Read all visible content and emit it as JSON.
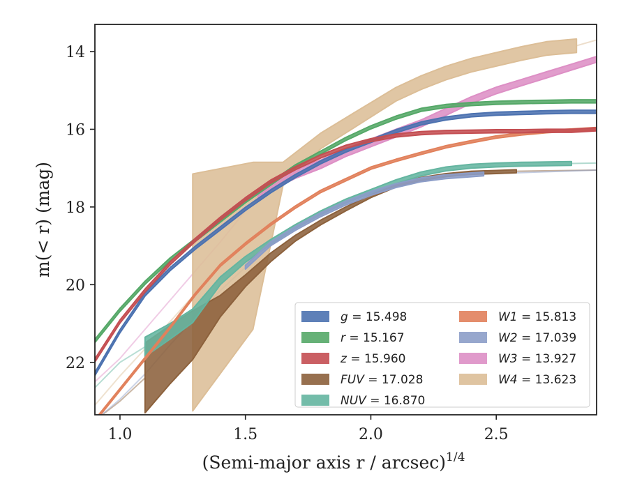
{
  "chart_data": {
    "type": "line",
    "xlabel": "(Semi-major axis r / arcsec)",
    "xlabel_exponent": "1/4",
    "ylabel": "m(< r) (mag)",
    "xlim": [
      0.9,
      2.9
    ],
    "ylim": [
      23.35,
      13.3
    ],
    "y_inverted": true,
    "xticks": [
      1.0,
      1.5,
      2.0,
      2.5
    ],
    "xtick_labels": [
      "1.0",
      "1.5",
      "2.0",
      "2.5"
    ],
    "yticks": [
      14,
      16,
      18,
      20,
      22
    ],
    "ytick_labels": [
      "14",
      "16",
      "18",
      "20",
      "22"
    ],
    "grid": false,
    "legend_position": "lower-right",
    "series": [
      {
        "name": "g = 15.498",
        "band": "g",
        "total_mag": "15.498",
        "color": "#4c72b0",
        "extrap_end": [
          2.9,
          15.52
        ],
        "x": [
          0.9,
          1.0,
          1.1,
          1.2,
          1.3,
          1.4,
          1.5,
          1.6,
          1.7,
          1.8,
          1.9,
          2.0,
          2.1,
          2.2,
          2.3,
          2.4,
          2.5,
          2.6,
          2.7,
          2.8,
          2.9
        ],
        "center": [
          22.3,
          21.2,
          20.25,
          19.6,
          19.05,
          18.55,
          18.05,
          17.6,
          17.2,
          16.85,
          16.55,
          16.3,
          16.05,
          15.85,
          15.72,
          15.64,
          15.6,
          15.58,
          15.56,
          15.55,
          15.55
        ],
        "width": 0.08
      },
      {
        "name": "r = 15.167",
        "band": "r",
        "total_mag": "15.167",
        "color": "#55a868",
        "extrap_end": [
          2.9,
          15.22
        ],
        "x": [
          0.9,
          1.0,
          1.1,
          1.2,
          1.3,
          1.4,
          1.5,
          1.6,
          1.7,
          1.8,
          1.9,
          2.0,
          2.1,
          2.2,
          2.3,
          2.4,
          2.5,
          2.6,
          2.7,
          2.8,
          2.9
        ],
        "center": [
          21.45,
          20.65,
          19.95,
          19.35,
          18.85,
          18.35,
          17.85,
          17.4,
          16.95,
          16.6,
          16.25,
          15.95,
          15.7,
          15.5,
          15.4,
          15.35,
          15.32,
          15.3,
          15.29,
          15.28,
          15.28
        ],
        "width": 0.08
      },
      {
        "name": "z = 15.960",
        "band": "z",
        "total_mag": "15.960",
        "color": "#c44e52",
        "extrap_end": [
          2.9,
          15.95
        ],
        "x": [
          0.9,
          1.0,
          1.1,
          1.2,
          1.3,
          1.4,
          1.5,
          1.6,
          1.7,
          1.8,
          1.9,
          2.0,
          2.1,
          2.2,
          2.3,
          2.4,
          2.5,
          2.6,
          2.7,
          2.8,
          2.9
        ],
        "center": [
          21.95,
          20.95,
          20.15,
          19.45,
          18.85,
          18.3,
          17.8,
          17.35,
          17.0,
          16.7,
          16.45,
          16.28,
          16.16,
          16.1,
          16.07,
          16.06,
          16.05,
          16.05,
          16.04,
          16.04,
          16.0
        ],
        "width": 0.08
      },
      {
        "name": "FUV = 17.028",
        "band": "FUV",
        "total_mag": "17.028",
        "color": "#8c613c",
        "extrap_end": [
          2.9,
          17.05
        ],
        "x": [
          1.1,
          1.2,
          1.29,
          1.4,
          1.5,
          1.6,
          1.7,
          1.8,
          1.9,
          2.0,
          2.1,
          2.2,
          2.3,
          2.4,
          2.5,
          2.58
        ],
        "center": [
          22.4,
          21.8,
          21.3,
          20.55,
          19.9,
          19.3,
          18.8,
          18.4,
          18.05,
          17.72,
          17.45,
          17.28,
          17.18,
          17.12,
          17.1,
          17.08
        ],
        "width": [
          1.8,
          1.5,
          1.25,
          0.55,
          0.3,
          0.22,
          0.15,
          0.12,
          0.1,
          0.08,
          0.08,
          0.08,
          0.08,
          0.08,
          0.08,
          0.08
        ],
        "x_pre": [
          0.9,
          1.0,
          1.1
        ],
        "pre": [
          23.5,
          23.0,
          22.4
        ]
      },
      {
        "name": "NUV = 16.870",
        "band": "NUV",
        "total_mag": "16.870",
        "color": "#64b5a0",
        "extrap_end": [
          2.9,
          16.87
        ],
        "x": [
          1.1,
          1.2,
          1.29,
          1.4,
          1.5,
          1.6,
          1.7,
          1.8,
          1.9,
          2.0,
          2.1,
          2.2,
          2.3,
          2.4,
          2.5,
          2.6,
          2.7,
          2.8
        ],
        "center": [
          21.6,
          21.2,
          20.8,
          19.9,
          19.35,
          18.9,
          18.5,
          18.15,
          17.85,
          17.6,
          17.35,
          17.15,
          17.02,
          16.95,
          16.92,
          16.9,
          16.89,
          16.88
        ],
        "width": [
          0.5,
          0.4,
          0.35,
          0.2,
          0.15,
          0.12,
          0.1,
          0.1,
          0.1,
          0.1,
          0.1,
          0.1,
          0.1,
          0.1,
          0.1,
          0.1,
          0.1,
          0.1
        ],
        "x_pre": [
          0.9,
          1.0,
          1.1
        ],
        "pre": [
          22.65,
          22.0,
          21.6
        ]
      },
      {
        "name": "W1 = 15.813",
        "band": "W1",
        "total_mag": "15.813",
        "color": "#e1815c",
        "extrap_end": [
          2.9,
          15.95
        ],
        "x": [
          0.9,
          1.0,
          1.1,
          1.2,
          1.3,
          1.4,
          1.5,
          1.6,
          1.7,
          1.8,
          1.9,
          2.0,
          2.1,
          2.2,
          2.3,
          2.4,
          2.5,
          2.6,
          2.7,
          2.8,
          2.9
        ],
        "center": [
          23.5,
          22.7,
          21.9,
          21.1,
          20.25,
          19.5,
          18.95,
          18.45,
          18.0,
          17.6,
          17.3,
          17.0,
          16.8,
          16.62,
          16.45,
          16.32,
          16.2,
          16.12,
          16.06,
          16.02,
          15.98
        ],
        "width": 0.06
      },
      {
        "name": "W2 = 17.039",
        "band": "W2",
        "total_mag": "17.039",
        "color": "#8c9dc8",
        "extrap_end": [
          2.9,
          17.05
        ],
        "x": [
          1.5,
          1.6,
          1.7,
          1.8,
          1.9,
          2.0,
          2.1,
          2.2,
          2.3,
          2.45
        ],
        "center": [
          19.55,
          18.95,
          18.55,
          18.2,
          17.9,
          17.65,
          17.45,
          17.3,
          17.22,
          17.15
        ],
        "width": 0.1,
        "x_pre": [
          0.9,
          1.0,
          1.1,
          1.2,
          1.3,
          1.4,
          1.5
        ],
        "pre": [
          23.5,
          22.95,
          22.3,
          21.55,
          20.85,
          20.15,
          19.55
        ]
      },
      {
        "name": "W3 = 13.927",
        "band": "W3",
        "total_mag": "13.927",
        "color": "#dd8fc5",
        "extrap_end": [
          2.9,
          14.2
        ],
        "x": [
          1.55,
          1.6,
          1.7,
          1.8,
          1.9,
          2.0,
          2.1,
          2.2,
          2.3,
          2.4,
          2.5,
          2.6,
          2.7,
          2.8,
          2.9
        ],
        "center": [
          17.7,
          17.45,
          17.15,
          16.9,
          16.6,
          16.35,
          16.1,
          15.85,
          15.55,
          15.25,
          15.0,
          14.8,
          14.6,
          14.4,
          14.2
        ],
        "width": [
          0.25,
          0.25,
          0.22,
          0.22,
          0.2,
          0.2,
          0.2,
          0.18,
          0.18,
          0.17,
          0.17,
          0.16,
          0.16,
          0.15,
          0.15
        ],
        "x_pre": [
          0.9,
          1.0,
          1.1,
          1.2,
          1.3,
          1.4,
          1.55
        ],
        "pre": [
          22.5,
          21.9,
          21.15,
          20.4,
          19.65,
          18.9,
          17.7
        ]
      },
      {
        "name": "W4 = 13.623",
        "band": "W4",
        "total_mag": "13.623",
        "color": "#dcbe97",
        "extrap_end": [
          2.9,
          13.7
        ],
        "x": [
          1.29,
          1.53,
          1.65,
          1.8,
          1.95,
          2.1,
          2.2,
          2.3,
          2.4,
          2.5,
          2.6,
          2.7,
          2.82
        ],
        "center": [
          20.2,
          19.0,
          17.15,
          16.3,
          15.7,
          15.1,
          14.8,
          14.55,
          14.35,
          14.2,
          14.05,
          13.92,
          13.85
        ],
        "width": [
          6.1,
          4.3,
          0.6,
          0.4,
          0.38,
          0.35,
          0.35,
          0.35,
          0.35,
          0.35,
          0.35,
          0.35,
          0.35
        ],
        "x_pre": [
          0.9,
          1.0,
          1.1,
          1.2,
          1.29
        ],
        "pre": [
          23.1,
          22.35,
          21.65,
          20.95,
          20.3
        ]
      }
    ]
  }
}
